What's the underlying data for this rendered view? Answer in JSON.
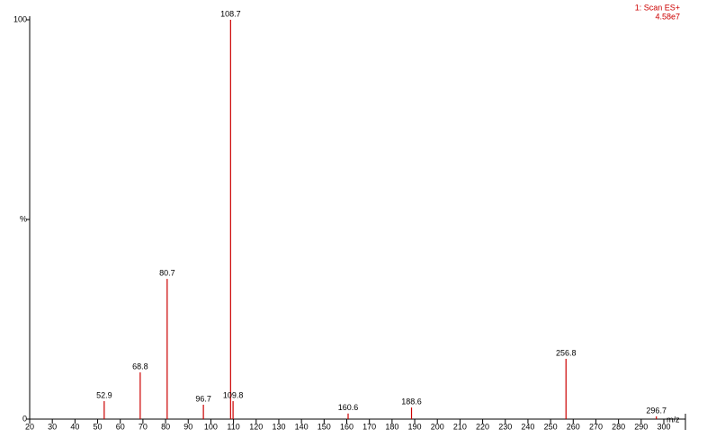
{
  "chart_data": {
    "type": "spectrum",
    "scan_label": "1: Scan ES+",
    "intensity_label": "4.58e7",
    "xlabel": "m/z",
    "x": [
      52.9,
      68.8,
      80.7,
      96.7,
      108.7,
      109.8,
      160.6,
      188.6,
      256.8,
      296.7
    ],
    "values": [
      4.5,
      11.7,
      35.1,
      3.6,
      100,
      4.5,
      1.4,
      2.9,
      15.1,
      0.7
    ],
    "color": "#cc0000",
    "xlim": [
      20,
      300
    ],
    "xticks": [
      20,
      30,
      40,
      50,
      60,
      70,
      80,
      90,
      100,
      110,
      120,
      130,
      140,
      150,
      160,
      170,
      180,
      190,
      200,
      210,
      220,
      230,
      240,
      250,
      260,
      270,
      280,
      290,
      300
    ],
    "ylim": [
      0,
      100
    ],
    "yticks": [
      0,
      {
        "value": 50,
        "label": "%"
      },
      100
    ]
  }
}
